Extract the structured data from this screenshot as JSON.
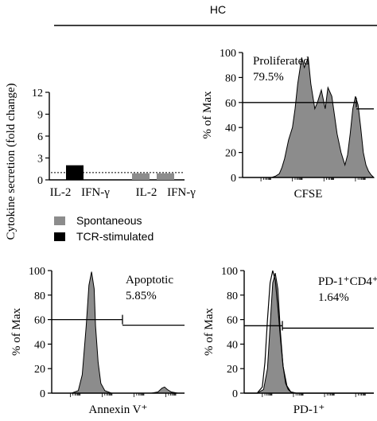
{
  "header": {
    "title": "HC"
  },
  "chart_data": [
    {
      "type": "bar",
      "ylabel": "Cytokine secretion (fold change)",
      "ylim": [
        0,
        12
      ],
      "yticks": [
        0,
        3,
        6,
        9,
        12
      ],
      "categories": [
        "IL-2",
        "IFN-γ",
        "IL-2",
        "IFN-γ"
      ],
      "series": [
        {
          "name": "TCR-stimulated",
          "color": "#000000",
          "values": [
            2.0,
            null,
            null,
            null
          ]
        },
        {
          "name": "Spontaneous",
          "color": "#8c8c8c",
          "values": [
            null,
            null,
            0.9,
            0.9
          ]
        }
      ],
      "reference_line": 1,
      "legend": [
        "Spontaneous",
        "TCR-stimulated"
      ]
    },
    {
      "type": "area",
      "xlabel": "CFSE",
      "ylabel": "% of Max",
      "ylim": [
        0,
        100
      ],
      "yticks": [
        0,
        20,
        40,
        60,
        80,
        100
      ],
      "annotation": [
        "Proliferated",
        "79.5%"
      ],
      "gate_level": 60,
      "fill": "#8c8c8c",
      "x": [
        0,
        6,
        12,
        18,
        22,
        25,
        28,
        30,
        32,
        35,
        38,
        40,
        42,
        45,
        47,
        50,
        52,
        55,
        57,
        60,
        63,
        65,
        68,
        70,
        72,
        75,
        78,
        80,
        82,
        84,
        86,
        88,
        90,
        92,
        94,
        96,
        98,
        100
      ],
      "y": [
        0,
        0,
        0,
        0,
        0,
        1,
        3,
        8,
        15,
        30,
        40,
        55,
        75,
        96,
        88,
        96,
        75,
        55,
        60,
        70,
        55,
        72,
        65,
        50,
        35,
        20,
        10,
        18,
        35,
        55,
        65,
        58,
        40,
        20,
        10,
        5,
        2,
        0
      ]
    },
    {
      "type": "area",
      "xlabel": "Annexin V⁺",
      "ylabel": "% of Max",
      "ylim": [
        0,
        100
      ],
      "yticks": [
        0,
        20,
        40,
        60,
        80,
        100
      ],
      "annotation": [
        "Apoptotic",
        "5.85%"
      ],
      "gate_level": 60,
      "fill": "#8c8c8c",
      "x": [
        0,
        15,
        20,
        23,
        26,
        28,
        30,
        32,
        33,
        35,
        37,
        40,
        45,
        55,
        65,
        75,
        80,
        83,
        85,
        87,
        90,
        95,
        100
      ],
      "y": [
        0,
        0,
        2,
        15,
        55,
        88,
        99,
        85,
        55,
        25,
        8,
        2,
        0,
        0,
        0,
        0,
        1,
        4,
        5,
        3,
        1,
        0,
        0
      ]
    },
    {
      "type": "area",
      "xlabel": "PD-1⁺",
      "ylabel": "% of Max",
      "ylim": [
        0,
        100
      ],
      "yticks": [
        0,
        20,
        40,
        60,
        80,
        100
      ],
      "annotation": [
        "PD-1⁺CD4⁺",
        "1.64%"
      ],
      "gate_level": 55,
      "fill": "#8c8c8c",
      "x": [
        0,
        10,
        15,
        18,
        20,
        22,
        24,
        26,
        28,
        30,
        33,
        36,
        40,
        50,
        100
      ],
      "y": [
        0,
        0,
        3,
        20,
        55,
        90,
        98,
        85,
        50,
        22,
        6,
        1,
        0,
        0,
        0
      ],
      "overlay_x": [
        0,
        10,
        14,
        16,
        18,
        20,
        22,
        24,
        26,
        28,
        30,
        32,
        34,
        36,
        40,
        50,
        100
      ],
      "overlay_y": [
        0,
        0,
        5,
        25,
        60,
        90,
        100,
        92,
        70,
        45,
        22,
        8,
        3,
        1,
        0,
        0,
        0
      ]
    }
  ]
}
